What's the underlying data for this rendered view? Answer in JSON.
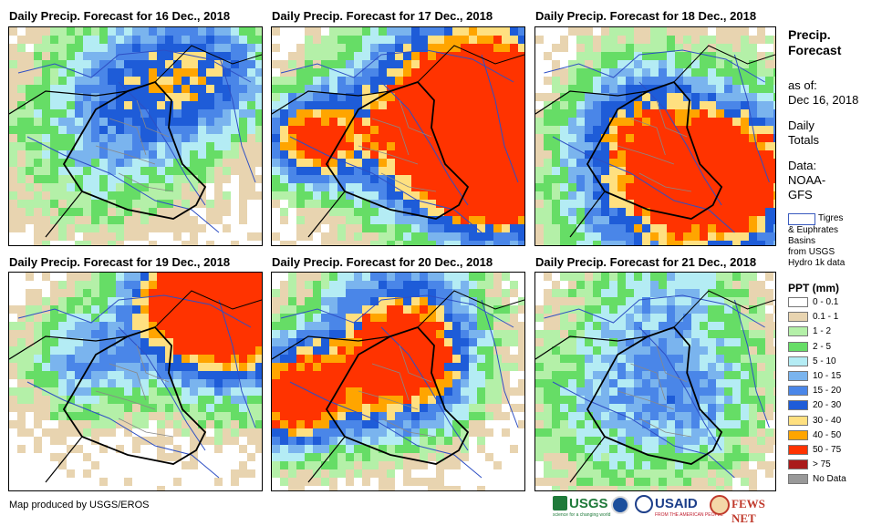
{
  "panels": [
    {
      "title": "Daily Precip. Forecast for 16 Dec., 2018",
      "intensity": 0.35,
      "seed": 11
    },
    {
      "title": "Daily Precip. Forecast for 17 Dec., 2018",
      "intensity": 0.9,
      "seed": 23
    },
    {
      "title": "Daily Precip. Forecast for 18 Dec., 2018",
      "intensity": 0.45,
      "seed": 37
    },
    {
      "title": "Daily Precip. Forecast for 19 Dec., 2018",
      "intensity": 0.6,
      "seed": 41
    },
    {
      "title": "Daily Precip. Forecast for 20 Dec., 2018",
      "intensity": 0.75,
      "seed": 53
    },
    {
      "title": "Daily Precip. Forecast for 21 Dec., 2018",
      "intensity": 0.4,
      "seed": 67
    }
  ],
  "sidebar": {
    "title_line1": "Precip.",
    "title_line2": "Forecast",
    "asof_line1": "as of:",
    "asof_line2": "Dec 16, 2018",
    "daily_line1": "Daily",
    "daily_line2": "Totals",
    "data_line1": "Data:",
    "data_line2": "NOAA-",
    "data_line3": "GFS",
    "basin_line1": "Tigres",
    "basin_line2": "& Euphrates",
    "basin_line3": "Basins",
    "basin_line4": "from USGS",
    "basin_line5": "Hydro 1k data",
    "legend_title": "PPT (mm)"
  },
  "legend": [
    {
      "label": "0 - 0.1",
      "color": "#ffffff"
    },
    {
      "label": "0.1 - 1",
      "color": "#e8d4b0"
    },
    {
      "label": "1 - 2",
      "color": "#b4f0a8"
    },
    {
      "label": "2 - 5",
      "color": "#66dd66"
    },
    {
      "label": "5 - 10",
      "color": "#b4ecf4"
    },
    {
      "label": "10 - 15",
      "color": "#7ab4ee"
    },
    {
      "label": "15 - 20",
      "color": "#4a86e8"
    },
    {
      "label": "20 - 30",
      "color": "#1e5cd8"
    },
    {
      "label": "30 - 40",
      "color": "#ffe080"
    },
    {
      "label": "40 - 50",
      "color": "#ffa500"
    },
    {
      "label": "50 - 75",
      "color": "#ff3300"
    },
    {
      "label": "> 75",
      "color": "#aa1a1a"
    },
    {
      "label": "No Data",
      "color": "#999999"
    }
  ],
  "credit": "Map produced by USGS/EROS",
  "logos": {
    "usgs": "USGS",
    "usgs_tagline": "science for a changing world",
    "usaid": "USAID",
    "usaid_tagline": "FROM THE AMERICAN PEOPLE",
    "fewsnet": "FEWS NET"
  }
}
